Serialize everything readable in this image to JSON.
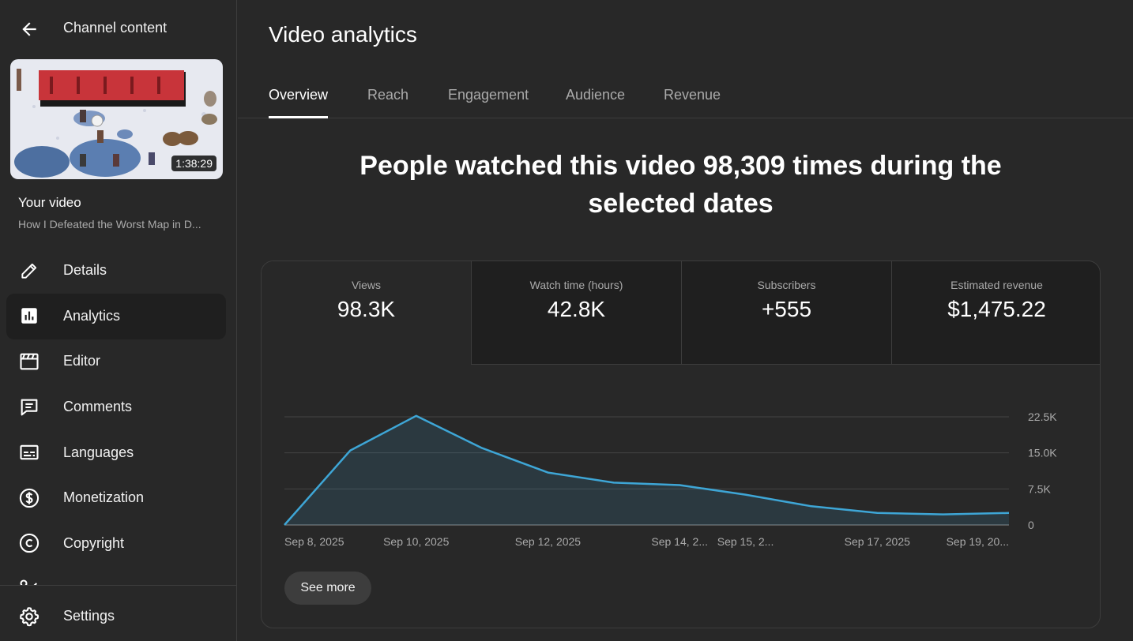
{
  "sidebar": {
    "title": "Channel content",
    "video": {
      "duration": "1:38:29",
      "heading": "Your video",
      "title": "How I Defeated the Worst Map in D..."
    },
    "items": [
      {
        "label": "Details",
        "icon": "pencil-icon"
      },
      {
        "label": "Analytics",
        "icon": "analytics-icon",
        "active": true
      },
      {
        "label": "Editor",
        "icon": "clapperboard-icon"
      },
      {
        "label": "Comments",
        "icon": "comment-icon"
      },
      {
        "label": "Languages",
        "icon": "subtitles-icon"
      },
      {
        "label": "Monetization",
        "icon": "dollar-icon"
      },
      {
        "label": "Copyright",
        "icon": "copyright-icon"
      }
    ],
    "settings_label": "Settings"
  },
  "main": {
    "title": "Video analytics",
    "tabs": [
      {
        "label": "Overview",
        "active": true
      },
      {
        "label": "Reach"
      },
      {
        "label": "Engagement"
      },
      {
        "label": "Audience"
      },
      {
        "label": "Revenue"
      }
    ],
    "headline": "People watched this video 98,309 times during the selected dates",
    "metrics": [
      {
        "label": "Views",
        "value": "98.3K",
        "active": true
      },
      {
        "label": "Watch time (hours)",
        "value": "42.8K"
      },
      {
        "label": "Subscribers",
        "value": "+555"
      },
      {
        "label": "Estimated revenue",
        "value": "$1,475.22"
      }
    ],
    "see_more": "See more"
  },
  "colors": {
    "accent_line": "#3ea6d6",
    "background": "#282828",
    "panel": "#1f1f1f"
  },
  "chart_data": {
    "type": "area",
    "x": [
      "Sep 8, 2025",
      "Sep 9, 2025",
      "Sep 10, 2025",
      "Sep 11, 2025",
      "Sep 12, 2025",
      "Sep 13, 2025",
      "Sep 14, 2025",
      "Sep 15, 2025",
      "Sep 16, 2025",
      "Sep 17, 2025",
      "Sep 18, 2025",
      "Sep 19, 2025"
    ],
    "series": [
      {
        "values": [
          0,
          15500,
          22700,
          16000,
          10900,
          8800,
          8300,
          6300,
          3900,
          2500,
          2200,
          2500
        ]
      }
    ],
    "x_tick_labels": [
      {
        "index": 0,
        "label": "Sep 8, 2025"
      },
      {
        "index": 2,
        "label": "Sep 10, 2025"
      },
      {
        "index": 4,
        "label": "Sep 12, 2025"
      },
      {
        "index": 6,
        "label": "Sep 14, 2..."
      },
      {
        "index": 7,
        "label": "Sep 15, 2..."
      },
      {
        "index": 9,
        "label": "Sep 17, 2025"
      },
      {
        "index": 11,
        "label": "Sep 19, 20..."
      }
    ],
    "y_ticks": [
      {
        "value": 0,
        "label": "0"
      },
      {
        "value": 7500,
        "label": "7.5K"
      },
      {
        "value": 15000,
        "label": "15.0K"
      },
      {
        "value": 22500,
        "label": "22.5K"
      }
    ],
    "ylim": [
      0,
      22500
    ],
    "y_axis_side": "right",
    "grid": true
  }
}
